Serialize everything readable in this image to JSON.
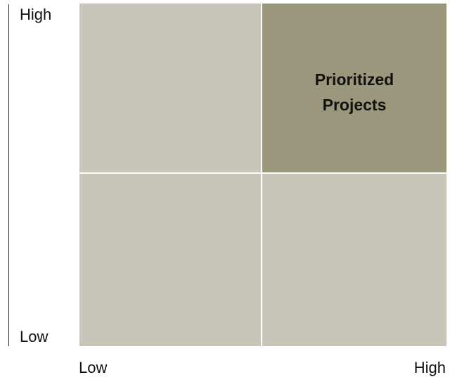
{
  "y_axis": {
    "high_label": "High",
    "low_label": "Low"
  },
  "x_axis": {
    "low_label": "Low",
    "high_label": "High"
  },
  "quadrants": {
    "top_left": {
      "label": ""
    },
    "top_right": {
      "label": "Prioritized\nProjects",
      "color": "#9a977d"
    },
    "bottom_left": {
      "label": ""
    },
    "bottom_right": {
      "label": ""
    },
    "base_color": "#c8c6b9"
  }
}
